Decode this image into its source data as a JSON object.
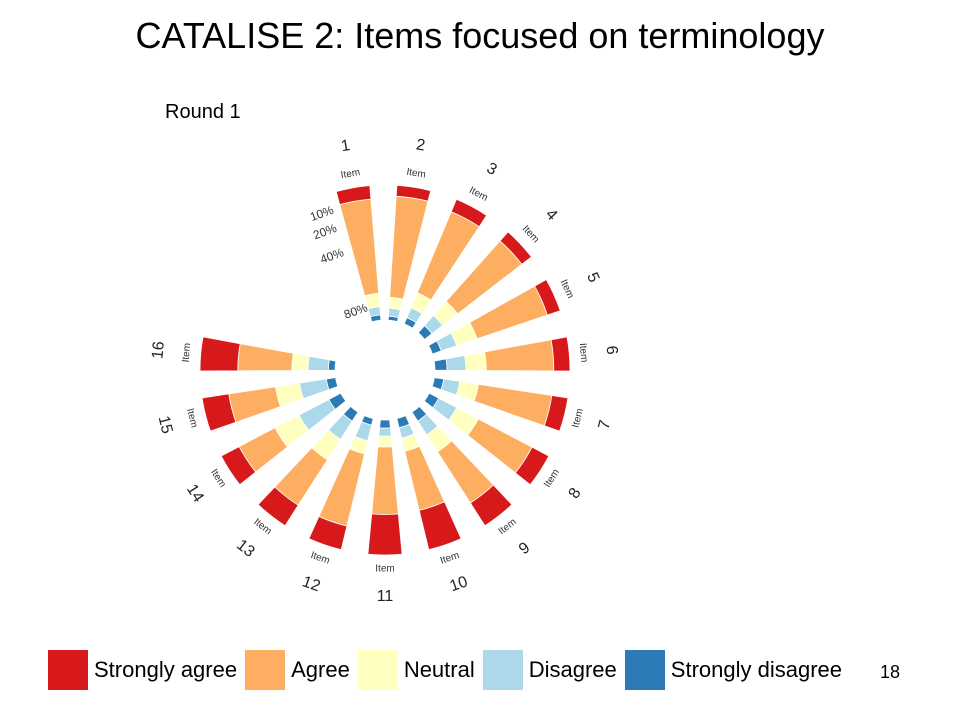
{
  "slide": {
    "title": "CATALISE 2: Items focused on terminology",
    "round_label": "Round 1",
    "page_number": "18"
  },
  "colors": {
    "strongly_agree": "#d7191c",
    "agree": "#fdae61",
    "neutral": "#ffffbf",
    "disagree": "#abd9e9",
    "strongly_disagree": "#2c7bb6"
  },
  "chart_data": {
    "type": "bar",
    "subtype": "radial-stacked",
    "scale_note": "log-like radial scale",
    "tick_labels": [
      "10%",
      "20%",
      "40%",
      "80%"
    ],
    "item_prefix": "Item",
    "categories": [
      "1",
      "2",
      "3",
      "4",
      "5",
      "6",
      "7",
      "8",
      "9",
      "10",
      "11",
      "12",
      "13",
      "14",
      "15",
      "16"
    ],
    "series": [
      {
        "name": "Strongly agree",
        "color": "#d7191c",
        "values": [
          10,
          8,
          10,
          9,
          10,
          12,
          12,
          14,
          20,
          30,
          30,
          18,
          18,
          15,
          20,
          28
        ]
      },
      {
        "name": "Agree",
        "color": "#fdae61",
        "values": [
          70,
          75,
          65,
          60,
          55,
          50,
          55,
          45,
          45,
          45,
          50,
          55,
          40,
          30,
          35,
          40
        ]
      },
      {
        "name": "Neutral",
        "color": "#ffffbf",
        "values": [
          10,
          8,
          12,
          14,
          16,
          15,
          14,
          18,
          15,
          10,
          8,
          10,
          18,
          20,
          18,
          12
        ]
      },
      {
        "name": "Disagree",
        "color": "#abd9e9",
        "values": [
          6,
          6,
          8,
          10,
          12,
          14,
          12,
          15,
          12,
          8,
          6,
          12,
          16,
          25,
          20,
          15
        ]
      },
      {
        "name": "Strongly disagree",
        "color": "#2c7bb6",
        "values": [
          4,
          3,
          5,
          7,
          7,
          9,
          7,
          8,
          8,
          7,
          6,
          5,
          8,
          10,
          7,
          5
        ]
      }
    ]
  },
  "legend": {
    "items": [
      {
        "label": "Strongly agree",
        "color": "#d7191c"
      },
      {
        "label": "Agree",
        "color": "#fdae61"
      },
      {
        "label": "Neutral",
        "color": "#ffffbf"
      },
      {
        "label": "Disagree",
        "color": "#abd9e9"
      },
      {
        "label": "Strongly disagree",
        "color": "#2c7bb6"
      }
    ]
  }
}
